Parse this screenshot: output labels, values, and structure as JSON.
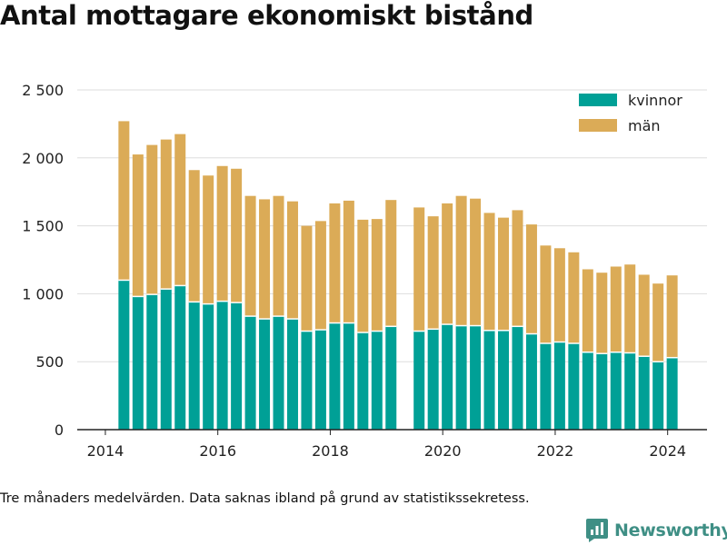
{
  "title": "Antal mottagare ekonomiskt bistånd",
  "footnote": "Tre månaders medelvärden. Data saknas ibland på grund av statistikssekretess.",
  "brand": "Newsworthy",
  "colors": {
    "kvinnor": "#00a096",
    "man": "#dbab57",
    "grid": "#dddddd",
    "axis": "#222222"
  },
  "chart_data": {
    "type": "bar",
    "stacked": true,
    "legend_position": "top-right",
    "grid": true,
    "ylim": [
      0,
      2500
    ],
    "yticks": [
      0,
      500,
      1000,
      1500,
      2000,
      2500
    ],
    "ytick_labels": [
      "0",
      "500",
      "1 000",
      "1 500",
      "2 000",
      "2 500"
    ],
    "xlim": [
      2013.5,
      2024.7
    ],
    "xticks": [
      2014,
      2016,
      2018,
      2020,
      2022,
      2024
    ],
    "xtick_labels": [
      "2014",
      "2016",
      "2018",
      "2020",
      "2022",
      "2024"
    ],
    "x": [
      2014.33,
      2014.58,
      2014.83,
      2015.08,
      2015.33,
      2015.58,
      2015.83,
      2016.08,
      2016.33,
      2016.58,
      2016.83,
      2017.08,
      2017.33,
      2017.58,
      2017.83,
      2018.08,
      2018.33,
      2018.58,
      2018.83,
      2019.08,
      2019.58,
      2019.83,
      2020.08,
      2020.33,
      2020.58,
      2020.83,
      2021.08,
      2021.33,
      2021.58,
      2021.83,
      2022.08,
      2022.33,
      2022.58,
      2022.83,
      2023.08,
      2023.33,
      2023.58,
      2023.83,
      2024.08
    ],
    "series": [
      {
        "name": "kvinnor",
        "values": [
          1100,
          980,
          995,
          1035,
          1060,
          940,
          925,
          945,
          935,
          835,
          815,
          835,
          815,
          725,
          735,
          785,
          785,
          715,
          725,
          760,
          725,
          740,
          775,
          765,
          765,
          730,
          730,
          760,
          705,
          635,
          645,
          635,
          570,
          560,
          570,
          565,
          540,
          500,
          530
        ]
      },
      {
        "name": "män",
        "values": [
          1170,
          1045,
          1100,
          1100,
          1115,
          970,
          945,
          995,
          985,
          885,
          880,
          885,
          865,
          775,
          800,
          880,
          900,
          830,
          825,
          930,
          910,
          830,
          890,
          955,
          935,
          865,
          830,
          855,
          805,
          720,
          690,
          670,
          610,
          595,
          630,
          650,
          600,
          575,
          605
        ]
      }
    ]
  }
}
